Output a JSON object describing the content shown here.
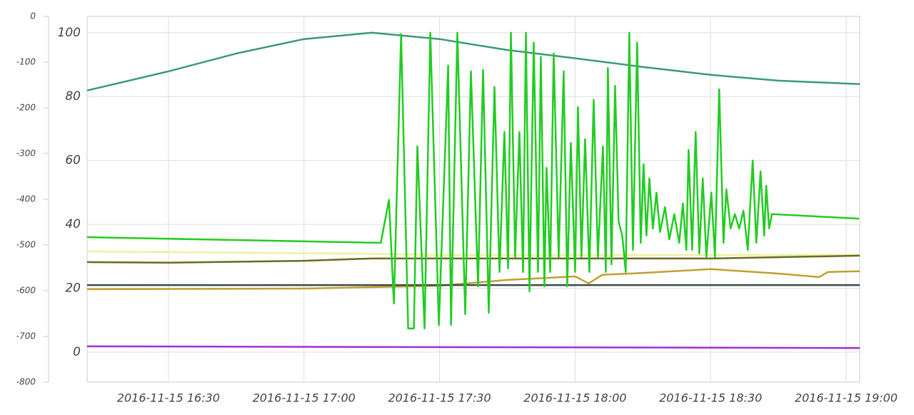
{
  "chart_data": {
    "type": "line",
    "xlim": [
      "2016-11-15 16:12",
      "2016-11-15 19:03"
    ],
    "xticks": [
      "2016-11-15 16:30",
      "2016-11-15 17:00",
      "2016-11-15 17:30",
      "2016-11-15 18:00",
      "2016-11-15 18:30",
      "2016-11-15 19:00"
    ],
    "ylim": [
      -9.4,
      105.1
    ],
    "yticks": [
      0,
      20,
      40,
      60,
      80,
      100
    ],
    "y2lim": [
      -800,
      0
    ],
    "y2ticks": [
      0,
      -100,
      -200,
      -300,
      -400,
      -500,
      -600,
      -700,
      -800
    ],
    "grid": true,
    "series": [
      {
        "color": "#3a9a7a",
        "x": [
          "2016-11-15 16:12",
          "2016-11-15 16:30",
          "2016-11-15 16:45",
          "2016-11-15 17:00",
          "2016-11-15 17:15",
          "2016-11-15 17:30",
          "2016-11-15 17:45",
          "2016-11-15 18:00",
          "2016-11-15 18:15",
          "2016-11-15 18:30",
          "2016-11-15 18:45",
          "2016-11-15 19:03"
        ],
        "values": [
          81.9,
          87.9,
          93.5,
          98,
          100,
          98,
          94.6,
          92,
          89.3,
          86.8,
          85,
          83.9
        ]
      },
      {
        "color": "#f0f0a0",
        "x": [
          "2016-11-15 16:12",
          "2016-11-15 17:15",
          "2016-11-15 17:30",
          "2016-11-15 19:03"
        ],
        "values": [
          31.5,
          30.8,
          30.4,
          30.4
        ]
      },
      {
        "color": "#6b6a1e",
        "x": [
          "2016-11-15 16:12",
          "2016-11-15 16:30",
          "2016-11-15 17:00",
          "2016-11-15 17:15",
          "2016-11-15 17:30",
          "2016-11-15 18:00",
          "2016-11-15 18:30",
          "2016-11-15 19:03"
        ],
        "values": [
          28.2,
          28,
          28.6,
          29.3,
          29.3,
          29.3,
          29.3,
          30.2
        ]
      },
      {
        "color": "#c0a030",
        "x": [
          "2016-11-15 16:12",
          "2016-11-15 17:00",
          "2016-11-15 17:30",
          "2016-11-15 17:45",
          "2016-11-15 18:00",
          "2016-11-15 18:03",
          "2016-11-15 18:06",
          "2016-11-15 18:15",
          "2016-11-15 18:30",
          "2016-11-15 18:45",
          "2016-11-15 18:54",
          "2016-11-15 18:56",
          "2016-11-15 19:03"
        ],
        "values": [
          19.7,
          19.9,
          20.8,
          22.6,
          23.7,
          21.5,
          24.2,
          24.8,
          26,
          24.6,
          23.5,
          25.1,
          25.3
        ]
      },
      {
        "color": "#3a4a48",
        "x": [
          "2016-11-15 16:12",
          "2016-11-15 19:03"
        ],
        "values": [
          21,
          21
        ]
      },
      {
        "color": "#a030d0",
        "x": [
          "2016-11-15 16:12",
          "2016-11-15 19:03"
        ],
        "values": [
          1.8,
          1.3
        ]
      },
      {
        "color": "#22cc22",
        "x": [
          "2016-11-15 16:12",
          "2016-11-15 17:17",
          "2016-11-15 17:18:48",
          "2016-11-15 17:19:54",
          "2016-11-15 17:21:29",
          "2016-11-15 17:23:03",
          "2016-11-15 17:24:19",
          "2016-11-15 17:25:06",
          "2016-11-15 17:26:41",
          "2016-11-15 17:27:57",
          "2016-11-15 17:29:51",
          "2016-11-15 17:31:54",
          "2016-11-15 17:32:32",
          "2016-11-15 17:33:57",
          "2016-11-15 17:35:41",
          "2016-11-15 17:36:57",
          "2016-11-15 17:38:32",
          "2016-11-15 17:39:38",
          "2016-11-15 17:40:54",
          "2016-11-15 17:42:10",
          "2016-11-15 17:43:16",
          "2016-11-15 17:44:22",
          "2016-11-15 17:45:10",
          "2016-11-15 17:45:48",
          "2016-11-15 17:46:44",
          "2016-11-15 17:47:41",
          "2016-11-15 17:48:29",
          "2016-11-15 17:49:07",
          "2016-11-15 17:49:54",
          "2016-11-15 17:50:51",
          "2016-11-15 17:51:48",
          "2016-11-15 17:52:25",
          "2016-11-15 17:53:13",
          "2016-11-15 17:53:41",
          "2016-11-15 17:54:29",
          "2016-11-15 17:55:16",
          "2016-11-15 17:56:22",
          "2016-11-15 17:57:29",
          "2016-11-15 17:58:16",
          "2016-11-15 17:59:03",
          "2016-11-15 18:00:00",
          "2016-11-15 18:00:38",
          "2016-11-15 18:01:25",
          "2016-11-15 18:02:13",
          "2016-11-15 18:03:10",
          "2016-11-15 18:04:07",
          "2016-11-15 18:05:03",
          "2016-11-15 18:06:10",
          "2016-11-15 18:06:48",
          "2016-11-15 18:07:16",
          "2016-11-15 18:08:03",
          "2016-11-15 18:08:51",
          "2016-11-15 18:09:38",
          "2016-11-15 18:10:26",
          "2016-11-15 18:11:13",
          "2016-11-15 18:12:00",
          "2016-11-15 18:12:48",
          "2016-11-15 18:13:44",
          "2016-11-15 18:14:32",
          "2016-11-15 18:15:10",
          "2016-11-15 18:15:48",
          "2016-11-15 18:16:26",
          "2016-11-15 18:17:13",
          "2016-11-15 18:18:00",
          "2016-11-15 18:18:48",
          "2016-11-15 18:19:54",
          "2016-11-15 18:20:51",
          "2016-11-15 18:21:57",
          "2016-11-15 18:23:03",
          "2016-11-15 18:23:51",
          "2016-11-15 18:24:38",
          "2016-11-15 18:25:07",
          "2016-11-15 18:25:54",
          "2016-11-15 18:26:41",
          "2016-11-15 18:27:29",
          "2016-11-15 18:28:16",
          "2016-11-15 18:29:03",
          "2016-11-15 18:30:10",
          "2016-11-15 18:30:57",
          "2016-11-15 18:31:54",
          "2016-11-15 18:32:51",
          "2016-11-15 18:33:29",
          "2016-11-15 18:34:26",
          "2016-11-15 18:35:22",
          "2016-11-15 18:36:19",
          "2016-11-15 18:37:16",
          "2016-11-15 18:38:13",
          "2016-11-15 18:39:19",
          "2016-11-15 18:40:07",
          "2016-11-15 18:41:03",
          "2016-11-15 18:41:51",
          "2016-11-15 18:42:19",
          "2016-11-15 18:42:57",
          "2016-11-15 18:43:35",
          "2016-11-15 19:02:51"
        ],
        "values": [
          36,
          34.2,
          47.7,
          15.2,
          99.6,
          7.4,
          7.4,
          64.4,
          7.4,
          100,
          8.5,
          89.7,
          8.5,
          100,
          11.9,
          87.9,
          20.6,
          88.4,
          12.3,
          83,
          25.1,
          68.9,
          26.2,
          100,
          29.8,
          68.9,
          25.1,
          100,
          19,
          96.9,
          25.1,
          92.4,
          20.6,
          57.7,
          25.1,
          93.5,
          29.8,
          87.9,
          20.6,
          65.5,
          25.1,
          76.7,
          29.8,
          66.7,
          25.1,
          79,
          29.8,
          64.4,
          25.1,
          89,
          27.5,
          83.4,
          40.9,
          36.5,
          25.1,
          100,
          32,
          96.9,
          34.2,
          58.8,
          36.5,
          54.4,
          38.7,
          49.9,
          37.6,
          45.4,
          35.3,
          43.2,
          34.2,
          46.5,
          32,
          63.3,
          32,
          68.9,
          30.9,
          54.4,
          29.8,
          49.9,
          29.8,
          82.3,
          34.2,
          51,
          38.7,
          43.2,
          38.7,
          44.3,
          32,
          60,
          34.2,
          56.6,
          36.5,
          52.1,
          38.7,
          43.2,
          41.8
        ]
      }
    ]
  }
}
